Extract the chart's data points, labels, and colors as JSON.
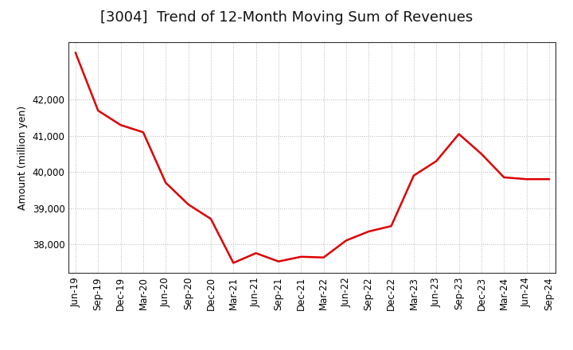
{
  "title": "[3004]  Trend of 12-Month Moving Sum of Revenues",
  "ylabel": "Amount (million yen)",
  "line_color": "#dd0000",
  "background_color": "#ffffff",
  "plot_background_color": "#ffffff",
  "grid_color": "#999999",
  "x_labels": [
    "Jun-19",
    "Sep-19",
    "Dec-19",
    "Mar-20",
    "Jun-20",
    "Sep-20",
    "Dec-20",
    "Mar-21",
    "Jun-21",
    "Sep-21",
    "Dec-21",
    "Mar-22",
    "Jun-22",
    "Sep-22",
    "Dec-22",
    "Mar-23",
    "Jun-23",
    "Sep-23",
    "Dec-23",
    "Mar-24",
    "Jun-24",
    "Sep-24"
  ],
  "values": [
    43300,
    41700,
    41300,
    41100,
    39700,
    39100,
    38700,
    37480,
    37750,
    37520,
    37650,
    37630,
    38100,
    38350,
    38500,
    39900,
    40300,
    41050,
    40500,
    39850,
    39800,
    39800
  ],
  "ylim_min": 37200,
  "ylim_max": 43600,
  "yticks": [
    38000,
    39000,
    40000,
    41000,
    42000
  ],
  "title_fontsize": 13,
  "axis_label_fontsize": 9,
  "tick_fontsize": 8.5
}
